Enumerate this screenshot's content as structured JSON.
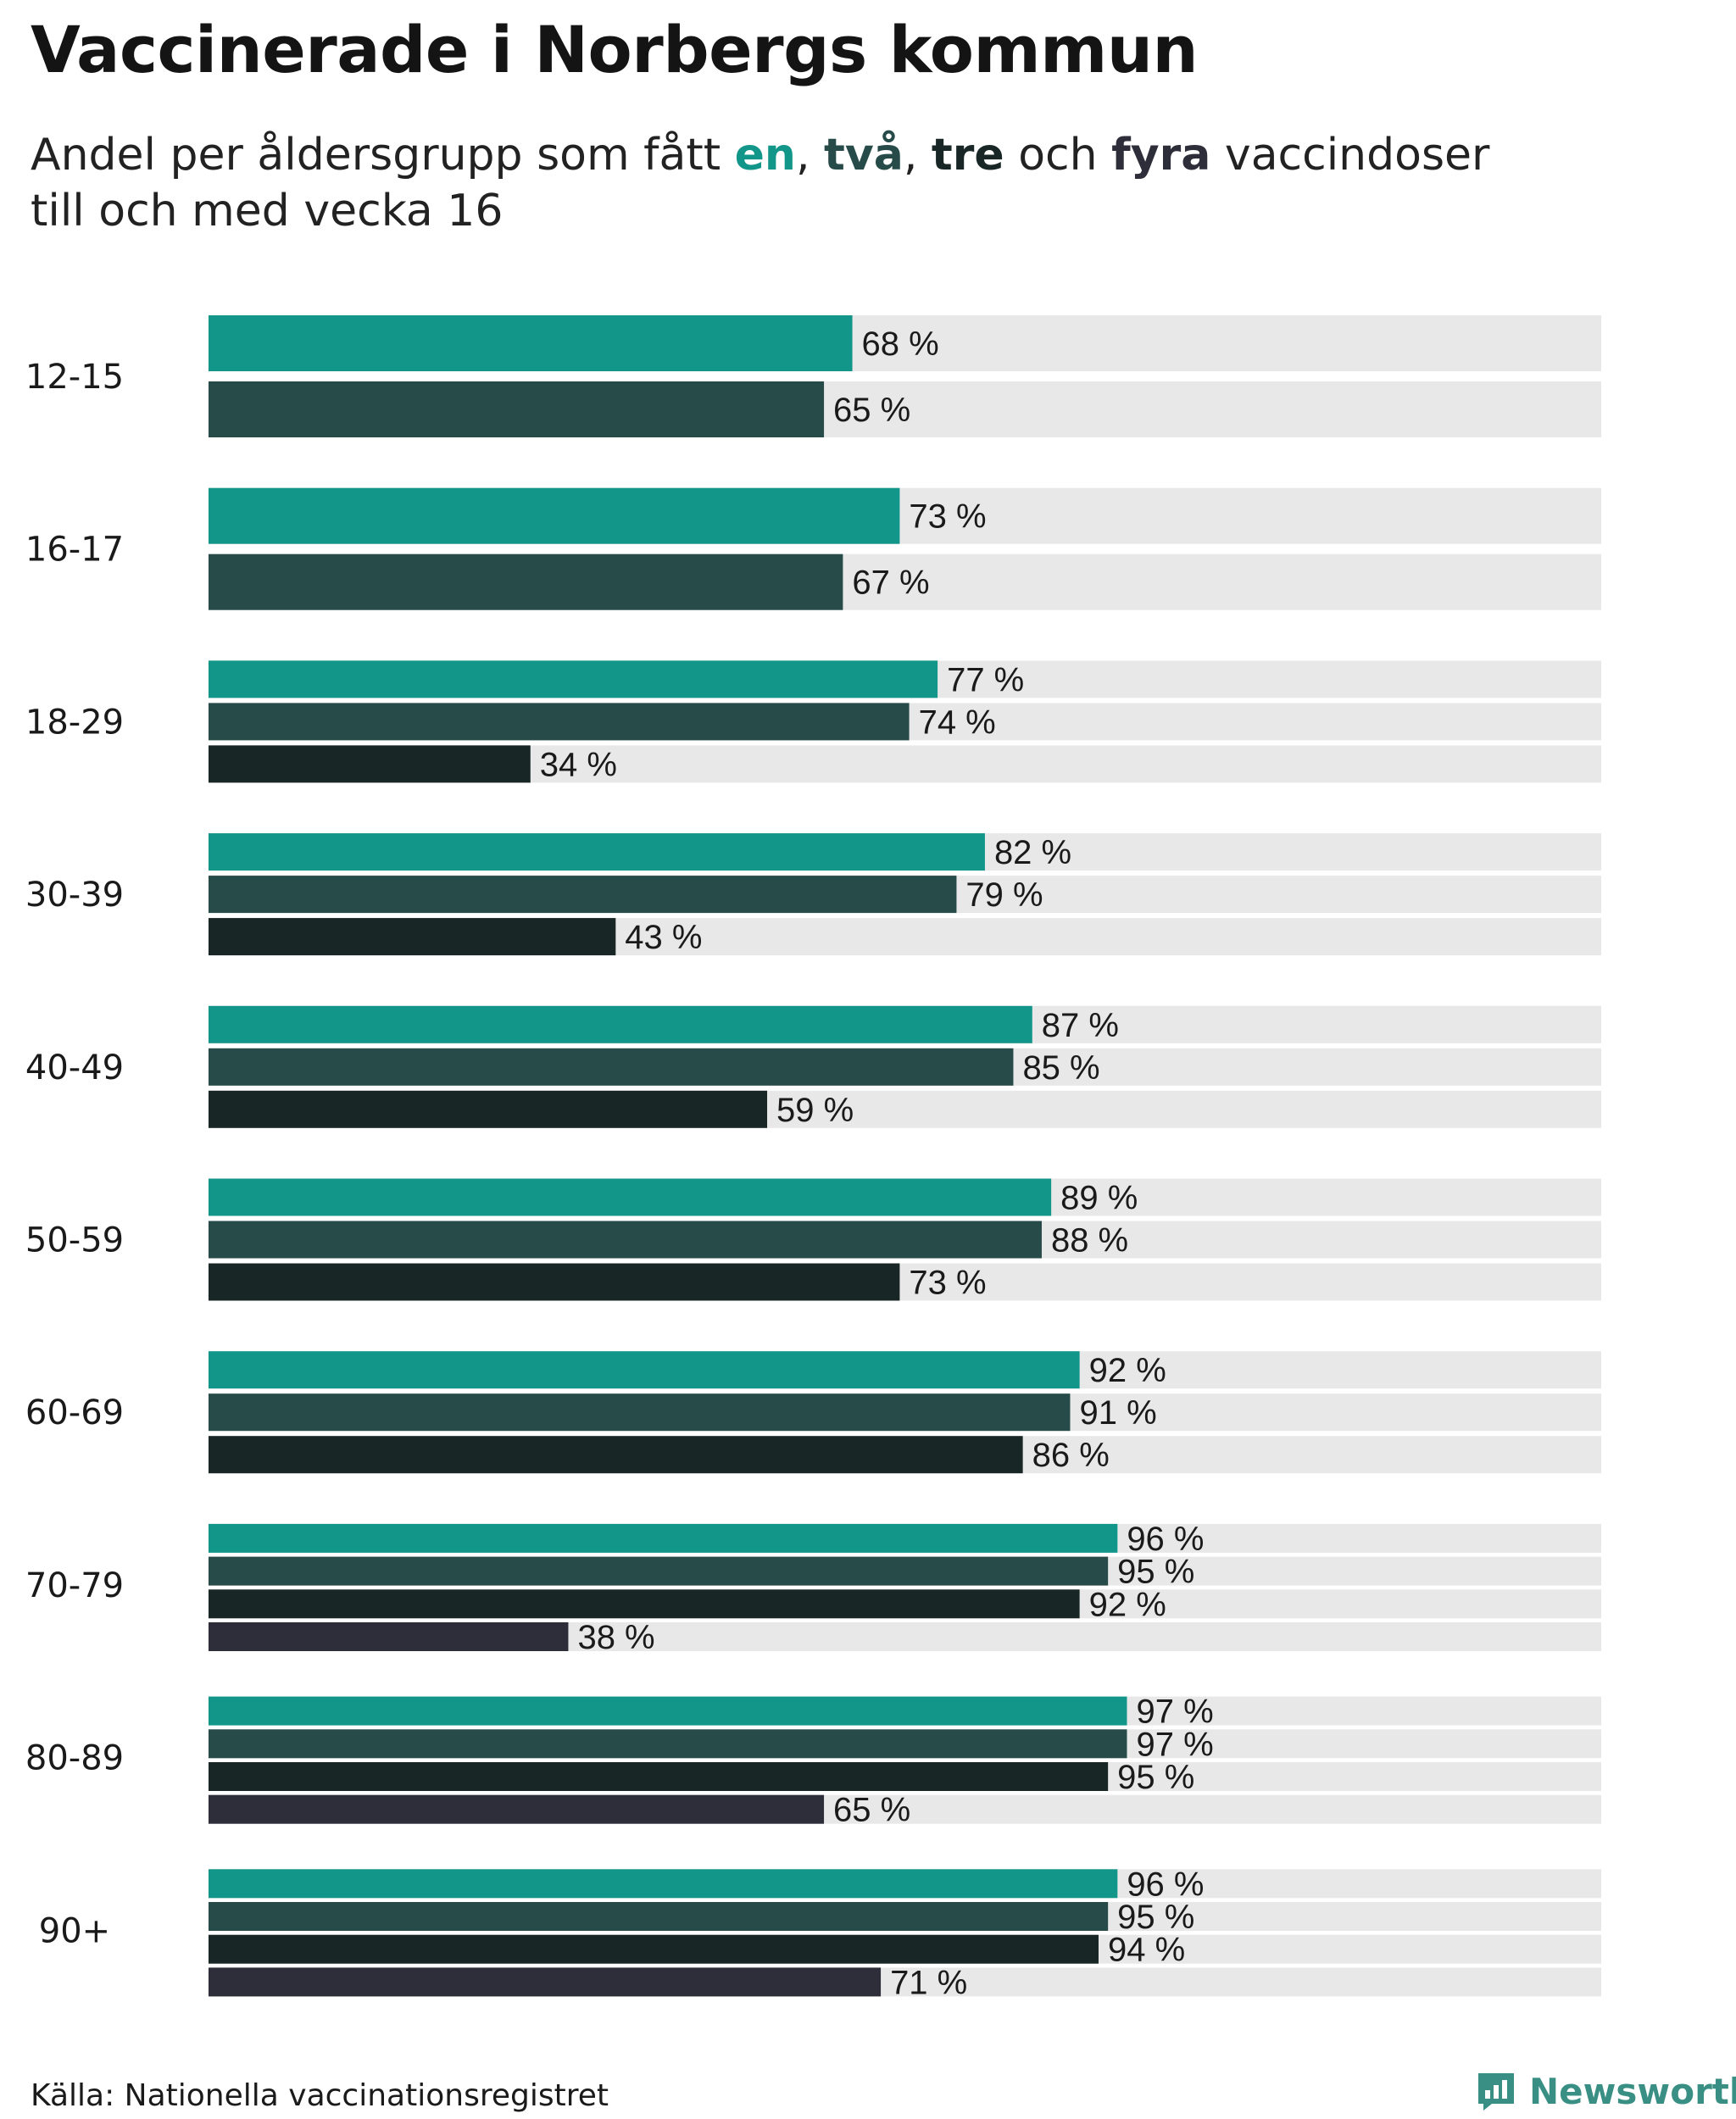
{
  "title": "Vaccinerade i Norbergs kommun",
  "subtitle": {
    "prefix": "Andel per åldersgrupp som fått ",
    "k1": "en",
    "sep1": ", ",
    "k2": "två",
    "sep2": ", ",
    "k3": "tre",
    "mid": " och ",
    "k4": "fyra",
    "suffix": " vaccindoser",
    "line2": "till och med vecka 16"
  },
  "colors": {
    "dose1": "#13968a",
    "dose2": "#264b49",
    "dose3": "#182725",
    "dose4": "#2e2e3a",
    "track": "#e8e8e8"
  },
  "chart_data": {
    "type": "bar",
    "orientation": "horizontal",
    "title": "Vaccinerade i Norbergs kommun",
    "xlabel": "",
    "ylabel": "",
    "xlim": [
      0,
      100
    ],
    "value_suffix": " %",
    "categories": [
      "12-15",
      "16-17",
      "18-29",
      "30-39",
      "40-49",
      "50-59",
      "60-69",
      "70-79",
      "80-89",
      "90+"
    ],
    "series": [
      {
        "name": "en",
        "values": [
          68,
          73,
          77,
          82,
          87,
          89,
          92,
          96,
          97,
          96
        ]
      },
      {
        "name": "två",
        "values": [
          65,
          67,
          74,
          79,
          85,
          88,
          91,
          95,
          97,
          95
        ]
      },
      {
        "name": "tre",
        "values": [
          null,
          null,
          34,
          43,
          59,
          73,
          86,
          92,
          95,
          94
        ]
      },
      {
        "name": "fyra",
        "values": [
          null,
          null,
          null,
          null,
          null,
          null,
          null,
          38,
          65,
          71
        ]
      }
    ]
  },
  "source": "Källa: Nationella vaccinationsregistret",
  "brand": "Newsworthy"
}
